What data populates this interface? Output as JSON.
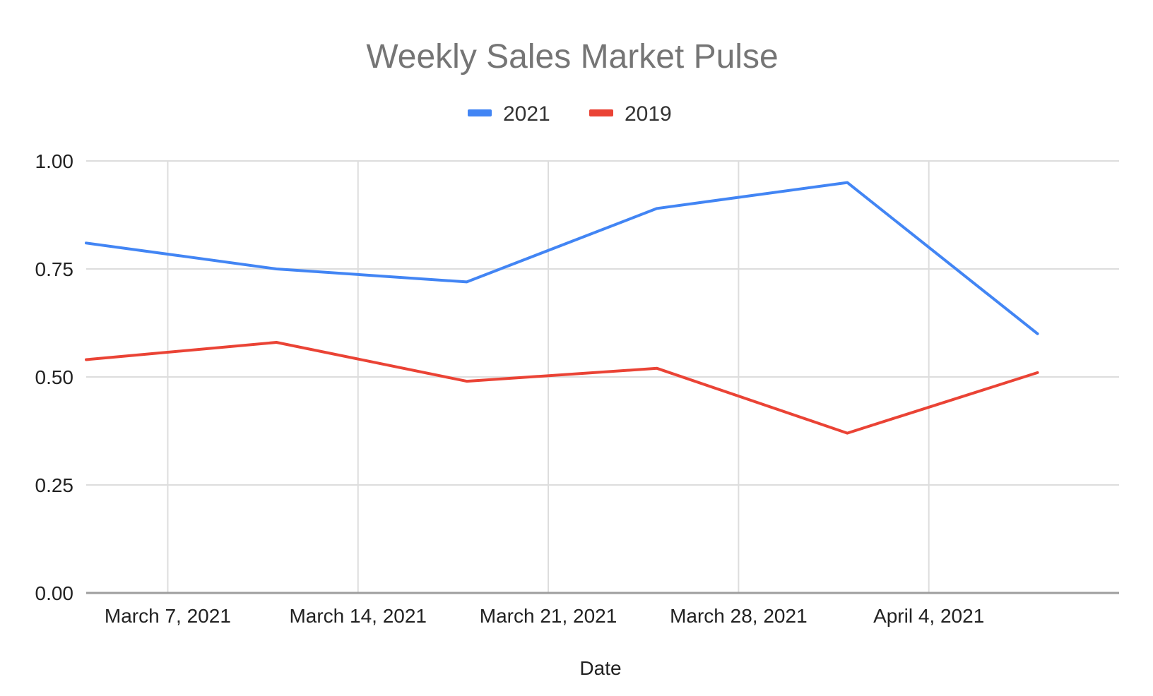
{
  "chart_data": {
    "type": "line",
    "title": "Weekly Sales Market Pulse",
    "xlabel": "Date",
    "ylabel": "",
    "ylim": [
      0,
      1
    ],
    "y_ticks": [
      "0.00",
      "0.25",
      "0.50",
      "0.75",
      "1.00"
    ],
    "x_ticks": [
      {
        "date": "2021-03-07",
        "label": "March 7, 2021"
      },
      {
        "date": "2021-03-14",
        "label": "March 14, 2021"
      },
      {
        "date": "2021-03-21",
        "label": "March 21, 2021"
      },
      {
        "date": "2021-03-28",
        "label": "March 28, 2021"
      },
      {
        "date": "2021-04-04",
        "label": "April 4, 2021"
      }
    ],
    "x_range": [
      "2021-03-04",
      "2021-04-11"
    ],
    "x": [
      "2021-03-04",
      "2021-03-11",
      "2021-03-18",
      "2021-03-25",
      "2021-04-01",
      "2021-04-08"
    ],
    "series": [
      {
        "name": "2021",
        "color": "#4285f4",
        "values": [
          0.81,
          0.75,
          0.72,
          0.89,
          0.95,
          0.6
        ]
      },
      {
        "name": "2019",
        "color": "#ea4335",
        "values": [
          0.54,
          0.58,
          0.49,
          0.52,
          0.37,
          0.51
        ]
      }
    ],
    "grid": true,
    "legend_position": "top-center"
  }
}
